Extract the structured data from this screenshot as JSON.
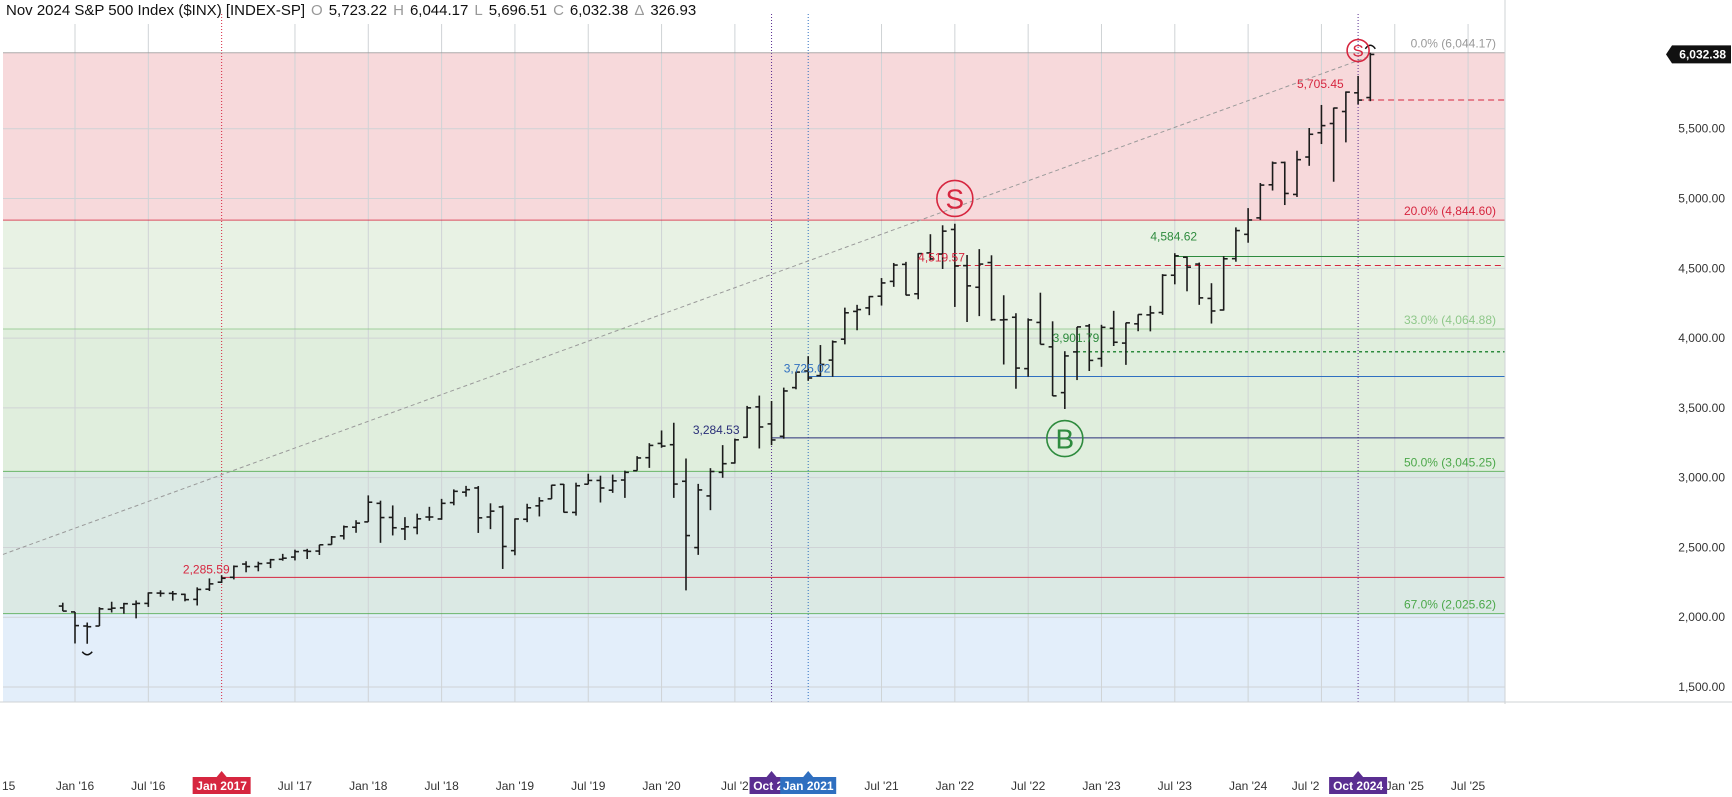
{
  "header": {
    "title": "Nov 2024 S&P 500 Index ($INX) [INDEX-SP]",
    "open_key": "O",
    "open": "5,723.22",
    "high_key": "H",
    "high": "6,044.17",
    "low_key": "L",
    "low": "5,696.51",
    "close_key": "C",
    "close": "6,032.38",
    "change_key": "Δ",
    "change": "326.93"
  },
  "colors": {
    "sell_zone": "#f7d9db",
    "mid_zone": "#e8f2e4",
    "green_zone": "#e0eedd",
    "teal_zone": "#dbe9e4",
    "blue_zone": "#e3eefa",
    "bar": "#1c1c1c",
    "red": "#d6263f",
    "green": "#2e8b3e",
    "blue": "#2f6fc0",
    "navy": "#2a2f78",
    "purple": "#5a2e91"
  },
  "chart_data": {
    "type": "ohlc",
    "period": "monthly",
    "ylim": [
      1450,
      6250
    ],
    "y_ticks": [
      "1,500.00",
      "2,000.00",
      "2,500.00",
      "3,000.00",
      "3,500.00",
      "4,000.00",
      "4,500.00",
      "5,000.00",
      "5,500.00"
    ],
    "x_labels": [
      "Jan '16",
      "Jul '16",
      "Jul '17",
      "Jan '18",
      "Jul '18",
      "Jan '19",
      "Jul '19",
      "Jan '20",
      "Jul '21",
      "Jan '22",
      "Jul '22",
      "Jan '23",
      "Jul '23",
      "Jan '24",
      "Jul '25"
    ],
    "x_labels_partial": [
      "15",
      "Jul '2",
      "Jul '2",
      "Jan '25"
    ],
    "x_highlight_labels": [
      {
        "text": "Jan 2017",
        "color": "#d6263f"
      },
      {
        "text": "Oct 20",
        "color": "#5a2e91"
      },
      {
        "text": "Jan 2021",
        "color": "#2f6fc0"
      },
      {
        "text": "Oct 2024",
        "color": "#5a2e91"
      }
    ],
    "last_price": "6,032.38",
    "fib_levels": [
      {
        "label": "0.0% (6,044.17)",
        "value": 6044.17,
        "color": "#9a9a9a"
      },
      {
        "label": "20.0% (4,844.60)",
        "value": 4844.6,
        "color": "#d6263f"
      },
      {
        "label": "33.0% (4,064.88)",
        "value": 4064.88,
        "color": "#8fc88a"
      },
      {
        "label": "50.0% (3,045.25)",
        "value": 3045.25,
        "color": "#4ca84a"
      },
      {
        "label": "67.0% (2,025.62)",
        "value": 2025.62,
        "color": "#4ca84a"
      }
    ],
    "level_labels": [
      {
        "text": "2,285.59",
        "value": 2285.59,
        "color": "#d6263f"
      },
      {
        "text": "3,284.53",
        "value": 3284.53,
        "color": "#2a2f78"
      },
      {
        "text": "3,725.02",
        "value": 3725.02,
        "color": "#2f6fc0"
      },
      {
        "text": "4,519.57",
        "value": 4519.57,
        "color": "#d6263f"
      },
      {
        "text": "3,901.79",
        "value": 3901.79,
        "color": "#2e8b3e"
      },
      {
        "text": "4,584.62",
        "value": 4584.62,
        "color": "#2e8b3e"
      },
      {
        "text": "5,705.45",
        "value": 5705.45,
        "color": "#d6263f"
      }
    ],
    "signals": [
      {
        "text": "S",
        "kind": "sell",
        "month": "2022-01",
        "value": 5000
      },
      {
        "text": "B",
        "kind": "buy",
        "month": "2022-10",
        "value": 3280
      },
      {
        "text": "S",
        "kind": "sell",
        "month": "2024-10",
        "value": 6060
      }
    ],
    "bars": [
      {
        "m": "2015-12",
        "o": 2080,
        "h": 2104,
        "l": 2044,
        "c": 2044
      },
      {
        "m": "2016-01",
        "o": 2038,
        "h": 2038,
        "l": 1812,
        "c": 1940
      },
      {
        "m": "2016-02",
        "o": 1937,
        "h": 1962,
        "l": 1810,
        "c": 1932
      },
      {
        "m": "2016-03",
        "o": 1937,
        "h": 2072,
        "l": 1937,
        "c": 2060
      },
      {
        "m": "2016-04",
        "o": 2057,
        "h": 2111,
        "l": 2034,
        "c": 2065
      },
      {
        "m": "2016-05",
        "o": 2067,
        "h": 2103,
        "l": 2025,
        "c": 2097
      },
      {
        "m": "2016-06",
        "o": 2093,
        "h": 2120,
        "l": 1992,
        "c": 2099
      },
      {
        "m": "2016-07",
        "o": 2099,
        "h": 2178,
        "l": 2074,
        "c": 2174
      },
      {
        "m": "2016-08",
        "o": 2173,
        "h": 2193,
        "l": 2147,
        "c": 2171
      },
      {
        "m": "2016-09",
        "o": 2171,
        "h": 2188,
        "l": 2119,
        "c": 2168
      },
      {
        "m": "2016-10",
        "o": 2164,
        "h": 2169,
        "l": 2114,
        "c": 2126
      },
      {
        "m": "2016-11",
        "o": 2128,
        "h": 2214,
        "l": 2084,
        "c": 2199
      },
      {
        "m": "2016-12",
        "o": 2201,
        "h": 2278,
        "l": 2188,
        "c": 2239
      },
      {
        "m": "2017-01",
        "o": 2251,
        "h": 2300,
        "l": 2245,
        "c": 2279
      },
      {
        "m": "2017-02",
        "o": 2286,
        "h": 2371,
        "l": 2271,
        "c": 2364
      },
      {
        "m": "2017-03",
        "o": 2381,
        "h": 2401,
        "l": 2322,
        "c": 2363
      },
      {
        "m": "2017-04",
        "o": 2363,
        "h": 2398,
        "l": 2329,
        "c": 2384
      },
      {
        "m": "2017-05",
        "o": 2388,
        "h": 2418,
        "l": 2352,
        "c": 2412
      },
      {
        "m": "2017-06",
        "o": 2415,
        "h": 2454,
        "l": 2405,
        "c": 2423
      },
      {
        "m": "2017-07",
        "o": 2431,
        "h": 2484,
        "l": 2407,
        "c": 2470
      },
      {
        "m": "2017-08",
        "o": 2477,
        "h": 2490,
        "l": 2417,
        "c": 2472
      },
      {
        "m": "2017-09",
        "o": 2474,
        "h": 2519,
        "l": 2446,
        "c": 2519
      },
      {
        "m": "2017-10",
        "o": 2521,
        "h": 2582,
        "l": 2520,
        "c": 2575
      },
      {
        "m": "2017-11",
        "o": 2583,
        "h": 2657,
        "l": 2557,
        "c": 2648
      },
      {
        "m": "2017-12",
        "o": 2645,
        "h": 2695,
        "l": 2605,
        "c": 2674
      },
      {
        "m": "2018-01",
        "o": 2683,
        "h": 2873,
        "l": 2683,
        "c": 2824
      },
      {
        "m": "2018-02",
        "o": 2816,
        "h": 2835,
        "l": 2533,
        "c": 2714
      },
      {
        "m": "2018-03",
        "o": 2715,
        "h": 2801,
        "l": 2586,
        "c": 2641
      },
      {
        "m": "2018-04",
        "o": 2633,
        "h": 2717,
        "l": 2553,
        "c": 2648
      },
      {
        "m": "2018-05",
        "o": 2643,
        "h": 2742,
        "l": 2594,
        "c": 2705
      },
      {
        "m": "2018-06",
        "o": 2718,
        "h": 2791,
        "l": 2691,
        "c": 2718
      },
      {
        "m": "2018-07",
        "o": 2704,
        "h": 2848,
        "l": 2698,
        "c": 2816
      },
      {
        "m": "2018-08",
        "o": 2821,
        "h": 2916,
        "l": 2802,
        "c": 2902
      },
      {
        "m": "2018-09",
        "o": 2896,
        "h": 2941,
        "l": 2864,
        "c": 2914
      },
      {
        "m": "2018-10",
        "o": 2926,
        "h": 2940,
        "l": 2604,
        "c": 2712
      },
      {
        "m": "2018-11",
        "o": 2718,
        "h": 2816,
        "l": 2631,
        "c": 2760
      },
      {
        "m": "2018-12",
        "o": 2790,
        "h": 2800,
        "l": 2346,
        "c": 2507
      },
      {
        "m": "2019-01",
        "o": 2477,
        "h": 2708,
        "l": 2444,
        "c": 2704
      },
      {
        "m": "2019-02",
        "o": 2702,
        "h": 2813,
        "l": 2681,
        "c": 2784
      },
      {
        "m": "2019-03",
        "o": 2798,
        "h": 2860,
        "l": 2722,
        "c": 2834
      },
      {
        "m": "2019-04",
        "o": 2848,
        "h": 2949,
        "l": 2848,
        "c": 2946
      },
      {
        "m": "2019-05",
        "o": 2952,
        "h": 2955,
        "l": 2750,
        "c": 2752
      },
      {
        "m": "2019-06",
        "o": 2751,
        "h": 2964,
        "l": 2728,
        "c": 2942
      },
      {
        "m": "2019-07",
        "o": 2953,
        "h": 3028,
        "l": 2952,
        "c": 2980
      },
      {
        "m": "2019-08",
        "o": 2980,
        "h": 3014,
        "l": 2822,
        "c": 2926
      },
      {
        "m": "2019-09",
        "o": 2910,
        "h": 3022,
        "l": 2891,
        "c": 2977
      },
      {
        "m": "2019-10",
        "o": 2983,
        "h": 3050,
        "l": 2855,
        "c": 3038
      },
      {
        "m": "2019-11",
        "o": 3050,
        "h": 3154,
        "l": 3050,
        "c": 3141
      },
      {
        "m": "2019-12",
        "o": 3143,
        "h": 3247,
        "l": 3070,
        "c": 3231
      },
      {
        "m": "2020-01",
        "o": 3245,
        "h": 3338,
        "l": 3214,
        "c": 3226
      },
      {
        "m": "2020-02",
        "o": 3236,
        "h": 3393,
        "l": 2855,
        "c": 2954
      },
      {
        "m": "2020-03",
        "o": 2974,
        "h": 3137,
        "l": 2192,
        "c": 2585
      },
      {
        "m": "2020-04",
        "o": 2499,
        "h": 2955,
        "l": 2447,
        "c": 2912
      },
      {
        "m": "2020-05",
        "o": 2869,
        "h": 3068,
        "l": 2767,
        "c": 3044
      },
      {
        "m": "2020-06",
        "o": 3038,
        "h": 3233,
        "l": 2999,
        "c": 3100
      },
      {
        "m": "2020-07",
        "o": 3105,
        "h": 3280,
        "l": 3101,
        "c": 3271
      },
      {
        "m": "2020-08",
        "o": 3289,
        "h": 3514,
        "l": 3285,
        "c": 3500
      },
      {
        "m": "2020-09",
        "o": 3507,
        "h": 3588,
        "l": 3209,
        "c": 3363
      },
      {
        "m": "2020-10",
        "o": 3385,
        "h": 3549,
        "l": 3233,
        "c": 3270
      },
      {
        "m": "2020-11",
        "o": 3296,
        "h": 3645,
        "l": 3279,
        "c": 3621
      },
      {
        "m": "2020-12",
        "o": 3645,
        "h": 3760,
        "l": 3633,
        "c": 3756
      },
      {
        "m": "2021-01",
        "o": 3764,
        "h": 3870,
        "l": 3694,
        "c": 3714
      },
      {
        "m": "2021-02",
        "o": 3731,
        "h": 3950,
        "l": 3725,
        "c": 3811
      },
      {
        "m": "2021-03",
        "o": 3842,
        "h": 3983,
        "l": 3723,
        "c": 3973
      },
      {
        "m": "2021-04",
        "o": 3992,
        "h": 4218,
        "l": 3955,
        "c": 4181
      },
      {
        "m": "2021-05",
        "o": 4191,
        "h": 4238,
        "l": 4056,
        "c": 4204
      },
      {
        "m": "2021-06",
        "o": 4216,
        "h": 4302,
        "l": 4164,
        "c": 4297
      },
      {
        "m": "2021-07",
        "o": 4300,
        "h": 4430,
        "l": 4233,
        "c": 4395
      },
      {
        "m": "2021-08",
        "o": 4406,
        "h": 4538,
        "l": 4367,
        "c": 4523
      },
      {
        "m": "2021-09",
        "o": 4528,
        "h": 4546,
        "l": 4306,
        "c": 4308
      },
      {
        "m": "2021-10",
        "o": 4317,
        "h": 4608,
        "l": 4278,
        "c": 4605
      },
      {
        "m": "2021-11",
        "o": 4610,
        "h": 4744,
        "l": 4560,
        "c": 4567
      },
      {
        "m": "2021-12",
        "o": 4602,
        "h": 4808,
        "l": 4495,
        "c": 4766
      },
      {
        "m": "2022-01",
        "o": 4778,
        "h": 4819,
        "l": 4223,
        "c": 4516
      },
      {
        "m": "2022-02",
        "o": 4519,
        "h": 4595,
        "l": 4115,
        "c": 4374
      },
      {
        "m": "2022-03",
        "o": 4364,
        "h": 4637,
        "l": 4157,
        "c": 4530
      },
      {
        "m": "2022-04",
        "o": 4541,
        "h": 4593,
        "l": 4124,
        "c": 4132
      },
      {
        "m": "2022-05",
        "o": 4130,
        "h": 4307,
        "l": 3811,
        "c": 4132
      },
      {
        "m": "2022-06",
        "o": 4149,
        "h": 4178,
        "l": 3637,
        "c": 3785
      },
      {
        "m": "2022-07",
        "o": 3781,
        "h": 4141,
        "l": 3723,
        "c": 4130
      },
      {
        "m": "2022-08",
        "o": 4112,
        "h": 4325,
        "l": 3955,
        "c": 3955
      },
      {
        "m": "2022-09",
        "o": 3937,
        "h": 4120,
        "l": 3585,
        "c": 3586
      },
      {
        "m": "2022-10",
        "o": 3609,
        "h": 3906,
        "l": 3492,
        "c": 3872
      },
      {
        "m": "2022-11",
        "o": 3901,
        "h": 4080,
        "l": 3699,
        "c": 4080
      },
      {
        "m": "2022-12",
        "o": 4087,
        "h": 4101,
        "l": 3764,
        "c": 3840
      },
      {
        "m": "2023-01",
        "o": 3853,
        "h": 4095,
        "l": 3794,
        "c": 4077
      },
      {
        "m": "2023-02",
        "o": 4070,
        "h": 4195,
        "l": 3943,
        "c": 3970
      },
      {
        "m": "2023-03",
        "o": 3964,
        "h": 4110,
        "l": 3808,
        "c": 4109
      },
      {
        "m": "2023-04",
        "o": 4102,
        "h": 4170,
        "l": 4049,
        "c": 4169
      },
      {
        "m": "2023-05",
        "o": 4166,
        "h": 4231,
        "l": 4048,
        "c": 4180
      },
      {
        "m": "2023-06",
        "o": 4183,
        "h": 4458,
        "l": 4166,
        "c": 4450
      },
      {
        "m": "2023-07",
        "o": 4450,
        "h": 4608,
        "l": 4385,
        "c": 4589
      },
      {
        "m": "2023-08",
        "o": 4579,
        "h": 4584,
        "l": 4335,
        "c": 4508
      },
      {
        "m": "2023-09",
        "o": 4530,
        "h": 4541,
        "l": 4238,
        "c": 4288
      },
      {
        "m": "2023-10",
        "o": 4284,
        "h": 4393,
        "l": 4104,
        "c": 4194
      },
      {
        "m": "2023-11",
        "o": 4201,
        "h": 4587,
        "l": 4197,
        "c": 4568
      },
      {
        "m": "2023-12",
        "o": 4569,
        "h": 4793,
        "l": 4547,
        "c": 4770
      },
      {
        "m": "2024-01",
        "o": 4743,
        "h": 4931,
        "l": 4683,
        "c": 4846
      },
      {
        "m": "2024-02",
        "o": 4861,
        "h": 5111,
        "l": 4845,
        "c": 5096
      },
      {
        "m": "2024-03",
        "o": 5098,
        "h": 5265,
        "l": 5057,
        "c": 5254
      },
      {
        "m": "2024-04",
        "o": 5258,
        "h": 5264,
        "l": 4953,
        "c": 5036
      },
      {
        "m": "2024-05",
        "o": 5029,
        "h": 5342,
        "l": 5011,
        "c": 5278
      },
      {
        "m": "2024-06",
        "o": 5297,
        "h": 5505,
        "l": 5234,
        "c": 5460
      },
      {
        "m": "2024-07",
        "o": 5471,
        "h": 5670,
        "l": 5390,
        "c": 5522
      },
      {
        "m": "2024-08",
        "o": 5537,
        "h": 5651,
        "l": 5120,
        "c": 5648
      },
      {
        "m": "2024-09",
        "o": 5623,
        "h": 5767,
        "l": 5402,
        "c": 5762
      },
      {
        "m": "2024-10",
        "o": 5757,
        "h": 5878,
        "l": 5674,
        "c": 5705
      },
      {
        "m": "2024-11",
        "o": 5723,
        "h": 6044,
        "l": 5697,
        "c": 6032
      }
    ]
  }
}
